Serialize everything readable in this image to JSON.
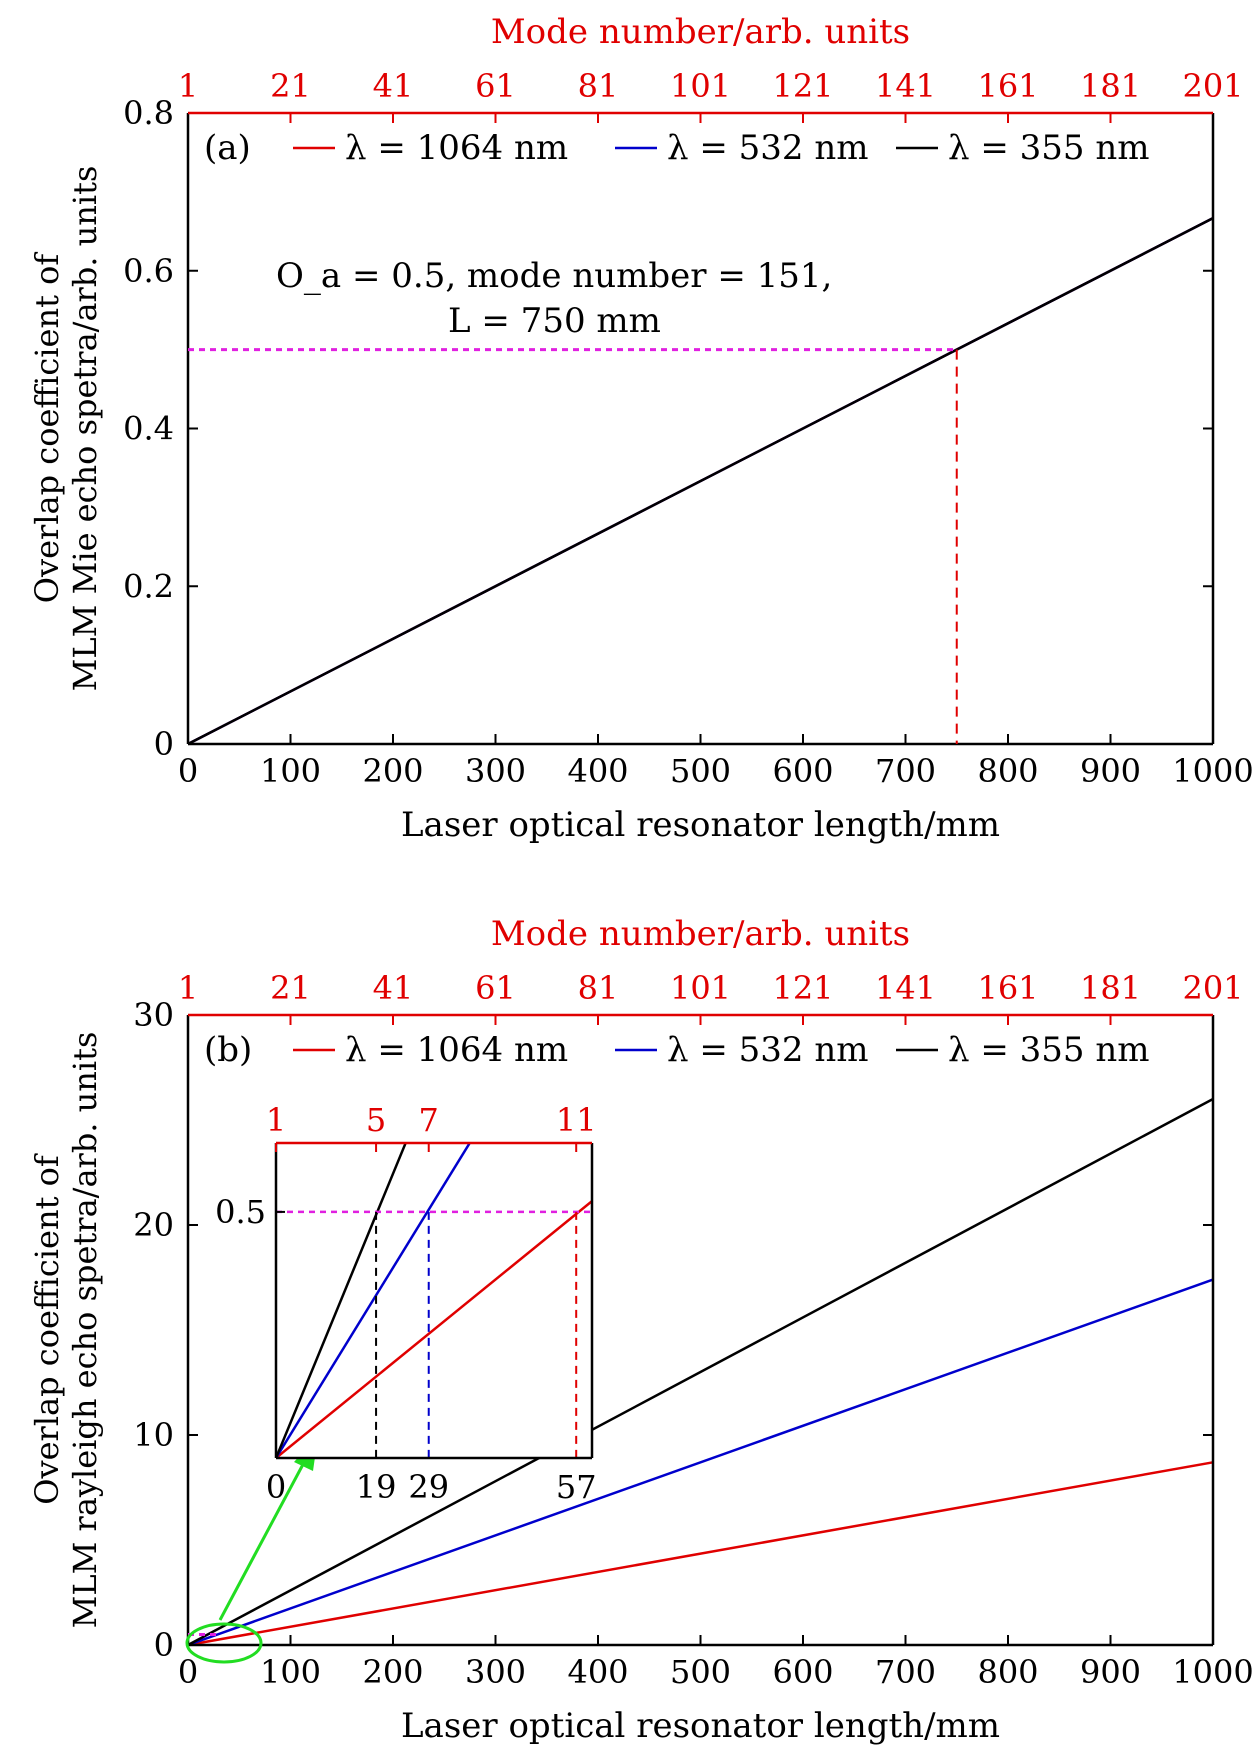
{
  "chart_data": [
    {
      "type": "line",
      "panel_label": "(a)",
      "xlabel": "Laser optical resonator length/mm",
      "ylabel_line1": "Overlap coefficient of",
      "ylabel_line2": "MLM Mie echo spetra/arb. units",
      "top_xlabel": "Mode number/arb. units",
      "xlim": [
        0,
        1000
      ],
      "ylim": [
        0,
        0.8
      ],
      "x_ticks": [
        "0",
        "100",
        "200",
        "300",
        "400",
        "500",
        "600",
        "700",
        "800",
        "900",
        "1000"
      ],
      "y_ticks": [
        "0",
        "0.2",
        "0.4",
        "0.6",
        "0.8"
      ],
      "top_ticks": [
        "1",
        "21",
        "41",
        "61",
        "81",
        "101",
        "121",
        "141",
        "161",
        "181",
        "201"
      ],
      "legend_placement": "top",
      "series": [
        {
          "name": "λ = 1064 nm",
          "color": "#e00000",
          "x": [
            0,
            1000
          ],
          "y": [
            0,
            0.6667
          ]
        },
        {
          "name": "λ = 532 nm",
          "color": "#0000cc",
          "x": [
            0,
            1000
          ],
          "y": [
            0,
            0.6667
          ]
        },
        {
          "name": "λ = 355 nm",
          "color": "#000000",
          "x": [
            0,
            1000
          ],
          "y": [
            0,
            0.6667
          ]
        }
      ],
      "annotation": {
        "line1": "O_a = 0.5, mode number = 151,",
        "line2": "L = 750 mm",
        "x": 750,
        "y": 0.5
      }
    },
    {
      "type": "line",
      "panel_label": "(b)",
      "xlabel": "Laser optical resonator length/mm",
      "ylabel_line1": "Overlap coefficient of",
      "ylabel_line2": "MLM rayleigh echo spetra/arb. units",
      "top_xlabel": "Mode number/arb. units",
      "xlim": [
        0,
        1000
      ],
      "ylim": [
        0,
        30
      ],
      "x_ticks": [
        "0",
        "100",
        "200",
        "300",
        "400",
        "500",
        "600",
        "700",
        "800",
        "900",
        "1000"
      ],
      "y_ticks": [
        "0",
        "10",
        "20",
        "30"
      ],
      "top_ticks": [
        "1",
        "21",
        "41",
        "61",
        "81",
        "101",
        "121",
        "141",
        "161",
        "181",
        "201"
      ],
      "legend_placement": "top",
      "series": [
        {
          "name": "λ = 1064 nm",
          "color": "#e00000",
          "x": [
            0,
            1000
          ],
          "y": [
            0,
            8.7
          ]
        },
        {
          "name": "λ = 532 nm",
          "color": "#0000cc",
          "x": [
            0,
            1000
          ],
          "y": [
            0,
            17.4
          ]
        },
        {
          "name": "λ = 355 nm",
          "color": "#000000",
          "x": [
            0,
            1000
          ],
          "y": [
            0,
            26.0
          ]
        }
      ],
      "inset": {
        "xlim": [
          0,
          60
        ],
        "ylim": [
          0,
          0.64
        ],
        "x_ticks": [
          "0",
          "19",
          "29",
          "57"
        ],
        "x_tick_values": [
          0,
          19,
          29,
          57
        ],
        "y_ticks": [
          "0.5"
        ],
        "y_tick_values": [
          0.5
        ],
        "top_ticks": [
          "1",
          "5",
          "7",
          "11"
        ],
        "top_tick_values": [
          0,
          19,
          29,
          57
        ],
        "threshold": 0.5
      }
    }
  ],
  "colors": {
    "red": "#e00000",
    "blue": "#0000cc",
    "black": "#000000",
    "magenta": "#e020e0",
    "green": "#22dd22"
  }
}
